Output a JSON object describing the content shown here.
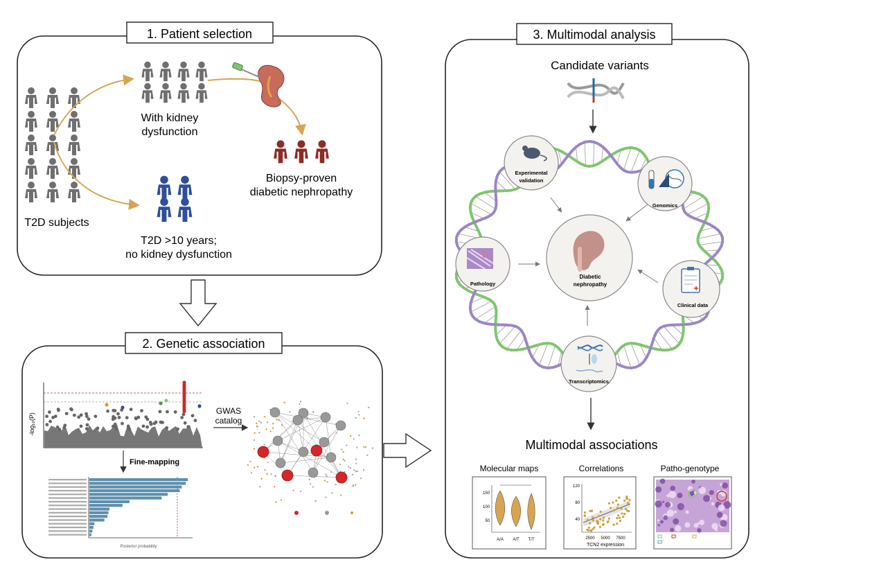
{
  "panel1": {
    "title": "1.  Patient selection",
    "t2d_label": "T2D subjects",
    "kidney_line1": "With kidney",
    "kidney_line2": "dysfunction",
    "biopsy_line1": "Biopsy-proven",
    "biopsy_line2": "diabetic nephropathy",
    "nodys_line1": "T2D >10 years;",
    "nodys_line2": "no kidney dysfunction"
  },
  "panel2": {
    "title": "2. Genetic association",
    "manhattan_ylabel": "-log₁₀(P)",
    "gwas_line1": "GWAS",
    "gwas_line2": "catalog",
    "finemap_label": "Fine-mapping",
    "posterior_xlabel": "Posterior probability",
    "posterior_values": [
      0.98,
      0.96,
      0.92,
      0.9,
      0.78,
      0.72,
      0.4,
      0.33,
      0.2,
      0.19,
      0.18,
      0.15,
      0.05,
      0.04,
      0.03,
      0.02
    ]
  },
  "panel3": {
    "title": "3. Multimodal  analysis",
    "candidate_label": "Candidate variants",
    "center_line1": "Diabetic",
    "center_line2": "nephropathy",
    "exp_line1": "Experimental",
    "exp_line2": "validation",
    "genomics": "Genomics",
    "pathology": "Pathology",
    "clinical": "Clinical data",
    "transcriptomics": "Transcriptomics",
    "assoc_title": "Multimodal associations",
    "molecular_maps": "Molecular maps",
    "correlations": "Correlations",
    "pathogenotype": "Patho-genotype",
    "corr_xlabel": "TCN2 expression",
    "corr_xticks": [
      "2500",
      "5000",
      "7500"
    ],
    "corr_yticks": [
      "120",
      "80",
      "40"
    ],
    "mol_yticks": [
      "150",
      "100",
      "50"
    ],
    "mol_cats": [
      "A/A",
      "A/T",
      "T/T"
    ]
  },
  "colors": {
    "gray_person": "#6f6f6f",
    "red_person": "#8b2c27",
    "blue_person": "#2f4f9a",
    "arrow_gold": "#d8a452",
    "helix_green": "#7fc56f",
    "helix_purple": "#9c86c4",
    "bar_blue": "#5e8fad"
  }
}
